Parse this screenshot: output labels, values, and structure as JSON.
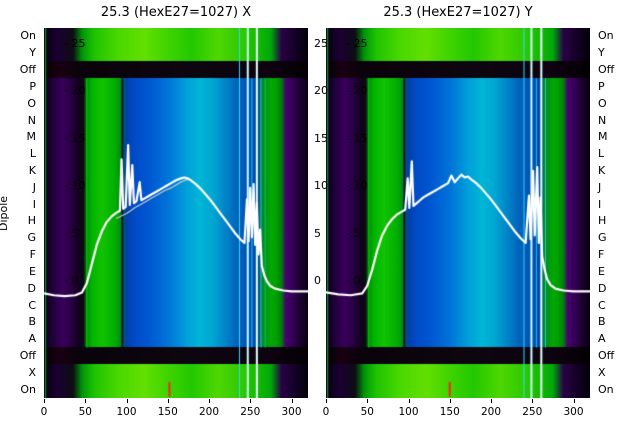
{
  "figure": {
    "ylabel": "Dipole",
    "row_labels": [
      "On",
      "Y",
      "Off",
      "P",
      "O",
      "N",
      "M",
      "L",
      "K",
      "J",
      "I",
      "H",
      "G",
      "F",
      "E",
      "D",
      "C",
      "B",
      "A",
      "Off",
      "X",
      "On"
    ],
    "x_tick_values": [
      0,
      50,
      100,
      150,
      200,
      250,
      300
    ],
    "x_tick_labels": [
      "0",
      "50",
      "100",
      "150",
      "200",
      "250",
      "300"
    ],
    "inner_tick_values": [
      25,
      20,
      15,
      10,
      5,
      0
    ],
    "inner_tick_labels": [
      "- 25",
      "- 20",
      "- 15",
      "- 10",
      "- 5",
      "- 0"
    ],
    "right_tick_labels": [
      "25",
      "20",
      "15",
      "10",
      "5",
      "0"
    ]
  },
  "heatmap_style": {
    "palettes": {
      "band": [
        [
          0,
          "#05000a"
        ],
        [
          0.05,
          "#1c0034"
        ],
        [
          0.11,
          "#0d0d12"
        ],
        [
          0.145,
          "#00960a"
        ],
        [
          0.19,
          "#1fc400"
        ],
        [
          0.28,
          "#49d800"
        ],
        [
          0.38,
          "#63e000"
        ],
        [
          0.47,
          "#3fd400"
        ],
        [
          0.56,
          "#23c800"
        ],
        [
          0.66,
          "#4fd800"
        ],
        [
          0.76,
          "#2cc800"
        ],
        [
          0.86,
          "#00a80a"
        ],
        [
          0.9,
          "#2a0046"
        ],
        [
          0.96,
          "#100020"
        ],
        [
          1,
          "#05000a"
        ]
      ],
      "off": [
        [
          0,
          "#060006"
        ],
        [
          0.06,
          "#190013"
        ],
        [
          0.13,
          "#0b030b"
        ],
        [
          0.5,
          "#0d060f"
        ],
        [
          0.86,
          "#0e0310"
        ],
        [
          1,
          "#040004"
        ]
      ],
      "mid": [
        [
          0,
          "#06000e"
        ],
        [
          0.03,
          "#1e0038"
        ],
        [
          0.07,
          "#3a005c"
        ],
        [
          0.1,
          "#2a0046"
        ],
        [
          0.13,
          "#140020"
        ],
        [
          0.15,
          "#0a0a14"
        ],
        [
          0.16,
          "#007d00"
        ],
        [
          0.18,
          "#00b400"
        ],
        [
          0.22,
          "#12c300"
        ],
        [
          0.27,
          "#00ae00"
        ],
        [
          0.29,
          "#008c14"
        ],
        [
          0.31,
          "#0040a4"
        ],
        [
          0.34,
          "#004ac8"
        ],
        [
          0.4,
          "#0058d2"
        ],
        [
          0.47,
          "#0074d8"
        ],
        [
          0.54,
          "#00a0da"
        ],
        [
          0.59,
          "#00b6d6"
        ],
        [
          0.64,
          "#00a6d2"
        ],
        [
          0.69,
          "#0082c8"
        ],
        [
          0.73,
          "#0064bc"
        ],
        [
          0.78,
          "#0050b0"
        ],
        [
          0.81,
          "#004aa6"
        ],
        [
          0.83,
          "#00862a"
        ],
        [
          0.86,
          "#00aa00"
        ],
        [
          0.88,
          "#009e00"
        ],
        [
          0.9,
          "#007c10"
        ],
        [
          0.915,
          "#4a006e"
        ],
        [
          0.94,
          "#360058"
        ],
        [
          0.97,
          "#1a002e"
        ],
        [
          1,
          "#08000f"
        ]
      ]
    }
  },
  "chart_data": [
    {
      "type": "heatmap",
      "title": "25.3 (HexE27=1027) X",
      "x_range": [
        0,
        320
      ],
      "x_ticks": [
        0,
        50,
        100,
        150,
        200,
        250,
        300
      ],
      "y_inner_ticks": [
        25,
        20,
        15,
        10,
        5,
        0
      ],
      "rows": [
        "On",
        "Y",
        "Off",
        "P",
        "O",
        "N",
        "M",
        "L",
        "K",
        "J",
        "I",
        "H",
        "G",
        "F",
        "E",
        "D",
        "C",
        "B",
        "A",
        "Off",
        "X",
        "On"
      ],
      "row_types": [
        "band",
        "band",
        "off",
        "mid",
        "mid",
        "mid",
        "mid",
        "mid",
        "mid",
        "mid",
        "mid",
        "mid",
        "mid",
        "mid",
        "mid",
        "mid",
        "mid",
        "mid",
        "mid",
        "off",
        "band",
        "band"
      ],
      "vlines": [
        {
          "x": 2,
          "color": "#00b43c",
          "w": 1,
          "rows": "all"
        },
        {
          "x": 52,
          "color": "#00d400",
          "w": 1,
          "rows": "mid"
        },
        {
          "x": 95,
          "color": "#001238",
          "w": 2,
          "rows": "mid"
        },
        {
          "x": 237,
          "color": "#2fd8ff",
          "w": 1,
          "rows": "all"
        },
        {
          "x": 247,
          "color": "#c8ffff",
          "w": 2,
          "rows": "all"
        },
        {
          "x": 252,
          "color": "#1ec0ff",
          "w": 1,
          "rows": "mid"
        },
        {
          "x": 258,
          "color": "#e6ffff",
          "w": 2,
          "rows": "all"
        },
        {
          "x": 263,
          "color": "#2fd8a0",
          "w": 1,
          "rows": "mid"
        },
        {
          "x": 268,
          "color": "#00cc44",
          "w": 1,
          "rows": "mid"
        },
        {
          "x": 152,
          "color": "#ff1e1e",
          "w": 2,
          "rows": "bottom"
        }
      ],
      "series": [
        {
          "name": "profile-secondary",
          "color": "#c9c9c9",
          "width": 1.2,
          "points": [
            [
              88,
              6.6
            ],
            [
              95,
              6.9
            ],
            [
              100,
              7.1
            ],
            [
              105,
              7.4
            ],
            [
              110,
              7.7
            ],
            [
              116,
              8.0
            ],
            [
              122,
              8.3
            ],
            [
              130,
              8.7
            ],
            [
              138,
              9.1
            ],
            [
              146,
              9.5
            ],
            [
              154,
              9.8
            ],
            [
              162,
              10.2
            ],
            [
              168,
              10.5
            ],
            [
              174,
              10.7
            ]
          ]
        },
        {
          "name": "beam-profile",
          "color": "#ffffff",
          "width": 2.2,
          "points": [
            [
              0,
              -1.3
            ],
            [
              12,
              -1.5
            ],
            [
              25,
              -1.6
            ],
            [
              38,
              -1.5
            ],
            [
              46,
              -1.2
            ],
            [
              52,
              -0.2
            ],
            [
              58,
              1.8
            ],
            [
              64,
              3.8
            ],
            [
              70,
              5.2
            ],
            [
              76,
              6.2
            ],
            [
              82,
              6.8
            ],
            [
              88,
              7.2
            ],
            [
              92,
              7.4
            ],
            [
              94,
              12.8
            ],
            [
              96,
              7.6
            ],
            [
              99,
              7.8
            ],
            [
              102,
              14.3
            ],
            [
              104,
              8.0
            ],
            [
              107,
              12.2
            ],
            [
              109,
              8.2
            ],
            [
              112,
              8.4
            ],
            [
              116,
              10.4
            ],
            [
              118,
              8.5
            ],
            [
              122,
              8.7
            ],
            [
              126,
              8.9
            ],
            [
              130,
              9.1
            ],
            [
              136,
              9.4
            ],
            [
              142,
              9.7
            ],
            [
              148,
              10.0
            ],
            [
              154,
              10.3
            ],
            [
              160,
              10.6
            ],
            [
              166,
              10.8
            ],
            [
              170,
              10.9
            ],
            [
              174,
              10.8
            ],
            [
              178,
              10.6
            ],
            [
              184,
              10.2
            ],
            [
              190,
              9.7
            ],
            [
              196,
              9.1
            ],
            [
              202,
              8.5
            ],
            [
              208,
              7.8
            ],
            [
              214,
              7.1
            ],
            [
              220,
              6.4
            ],
            [
              226,
              5.7
            ],
            [
              232,
              5.0
            ],
            [
              238,
              4.4
            ],
            [
              243,
              4.0
            ],
            [
              246,
              8.6
            ],
            [
              248,
              4.2
            ],
            [
              250,
              9.8
            ],
            [
              252,
              4.6
            ],
            [
              254,
              10.2
            ],
            [
              256,
              3.8
            ],
            [
              258,
              8.2
            ],
            [
              260,
              2.8
            ],
            [
              262,
              5.4
            ],
            [
              264,
              1.6
            ],
            [
              267,
              0.6
            ],
            [
              270,
              0.0
            ],
            [
              274,
              -0.5
            ],
            [
              280,
              -0.8
            ],
            [
              290,
              -1.0
            ],
            [
              300,
              -1.1
            ],
            [
              310,
              -1.1
            ],
            [
              320,
              -1.1
            ]
          ]
        }
      ]
    },
    {
      "type": "heatmap",
      "title": "25.3 (HexE27=1027) Y",
      "x_range": [
        0,
        320
      ],
      "x_ticks": [
        0,
        50,
        100,
        150,
        200,
        250,
        300
      ],
      "y_inner_ticks": [
        25,
        20,
        15,
        10,
        5,
        0
      ],
      "rows": [
        "On",
        "Y",
        "Off",
        "P",
        "O",
        "N",
        "M",
        "L",
        "K",
        "J",
        "I",
        "H",
        "G",
        "F",
        "E",
        "D",
        "C",
        "B",
        "A",
        "Off",
        "X",
        "On"
      ],
      "row_types": [
        "band",
        "band",
        "off",
        "mid",
        "mid",
        "mid",
        "mid",
        "mid",
        "mid",
        "mid",
        "mid",
        "mid",
        "mid",
        "mid",
        "mid",
        "mid",
        "mid",
        "mid",
        "mid",
        "off",
        "band",
        "band"
      ],
      "vlines": [
        {
          "x": 2,
          "color": "#00b43c",
          "w": 1,
          "rows": "all"
        },
        {
          "x": 52,
          "color": "#00d400",
          "w": 1,
          "rows": "mid"
        },
        {
          "x": 95,
          "color": "#001238",
          "w": 2,
          "rows": "mid"
        },
        {
          "x": 240,
          "color": "#2fd8ff",
          "w": 1,
          "rows": "all"
        },
        {
          "x": 249,
          "color": "#c8ffff",
          "w": 2,
          "rows": "all"
        },
        {
          "x": 255,
          "color": "#1ec0ff",
          "w": 1,
          "rows": "mid"
        },
        {
          "x": 261,
          "color": "#e6ffff",
          "w": 2,
          "rows": "all"
        },
        {
          "x": 266,
          "color": "#2fd8a0",
          "w": 1,
          "rows": "mid"
        },
        {
          "x": 150,
          "color": "#ff1e1e",
          "w": 2,
          "rows": "bottom"
        }
      ],
      "series": [
        {
          "name": "beam-profile",
          "color": "#ffffff",
          "width": 2.2,
          "points": [
            [
              0,
              -1.2
            ],
            [
              15,
              -1.4
            ],
            [
              30,
              -1.5
            ],
            [
              44,
              -1.3
            ],
            [
              50,
              -0.5
            ],
            [
              56,
              1.2
            ],
            [
              62,
              3.2
            ],
            [
              68,
              4.8
            ],
            [
              74,
              5.8
            ],
            [
              80,
              6.5
            ],
            [
              86,
              7.0
            ],
            [
              92,
              7.3
            ],
            [
              96,
              7.5
            ],
            [
              99,
              10.8
            ],
            [
              101,
              7.7
            ],
            [
              104,
              12.6
            ],
            [
              106,
              7.9
            ],
            [
              110,
              8.2
            ],
            [
              114,
              8.5
            ],
            [
              118,
              8.8
            ],
            [
              124,
              9.1
            ],
            [
              130,
              9.4
            ],
            [
              136,
              9.7
            ],
            [
              142,
              10.0
            ],
            [
              148,
              10.3
            ],
            [
              152,
              11.1
            ],
            [
              156,
              10.4
            ],
            [
              160,
              10.8
            ],
            [
              164,
              11.2
            ],
            [
              168,
              10.9
            ],
            [
              172,
              11.0
            ],
            [
              176,
              10.7
            ],
            [
              182,
              10.3
            ],
            [
              188,
              9.8
            ],
            [
              194,
              9.2
            ],
            [
              200,
              8.6
            ],
            [
              206,
              7.9
            ],
            [
              212,
              7.2
            ],
            [
              218,
              6.5
            ],
            [
              224,
              5.8
            ],
            [
              230,
              5.1
            ],
            [
              236,
              4.5
            ],
            [
              242,
              4.0
            ],
            [
              246,
              9.0
            ],
            [
              248,
              4.4
            ],
            [
              251,
              11.6
            ],
            [
              253,
              4.8
            ],
            [
              256,
              12.0
            ],
            [
              258,
              4.0
            ],
            [
              260,
              8.8
            ],
            [
              262,
              2.6
            ],
            [
              265,
              1.2
            ],
            [
              268,
              0.2
            ],
            [
              272,
              -0.4
            ],
            [
              278,
              -0.8
            ],
            [
              288,
              -1.0
            ],
            [
              300,
              -1.1
            ],
            [
              320,
              -1.1
            ]
          ]
        }
      ]
    }
  ]
}
